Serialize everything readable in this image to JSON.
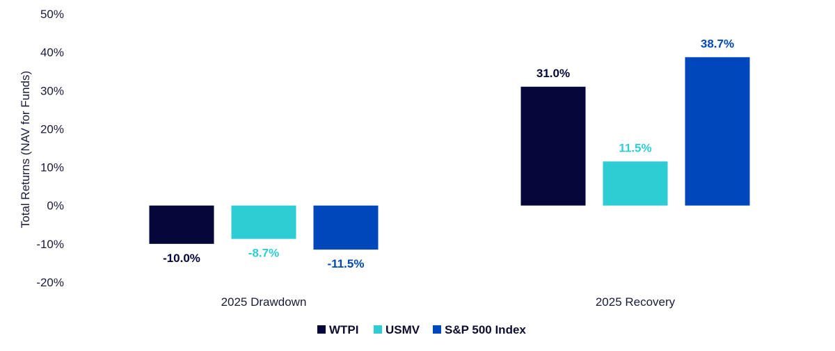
{
  "chart_data": {
    "type": "bar",
    "categories": [
      "2025 Drawdown",
      "2025 Recovery"
    ],
    "series": [
      {
        "name": "WTPI",
        "values": [
          -10.0,
          31.0
        ],
        "labels": [
          "-10.0%",
          "31.0%"
        ],
        "color": "#05063a"
      },
      {
        "name": "USMV",
        "values": [
          -8.7,
          11.5
        ],
        "labels": [
          "-8.7%",
          "11.5%"
        ],
        "color": "#2ecdd3"
      },
      {
        "name": "S&P 500 Index",
        "values": [
          -11.5,
          38.7
        ],
        "labels": [
          "-11.5%",
          "38.7%"
        ],
        "color": "#0047bb"
      }
    ],
    "title": "",
    "xlabel": "",
    "ylabel": "Total Returns (NAV for Funds)",
    "ylim": [
      -20,
      50
    ],
    "yticks": [
      50,
      40,
      30,
      20,
      10,
      0,
      -10,
      -20
    ],
    "ytick_labels": [
      "50%",
      "40%",
      "30%",
      "20%",
      "10%",
      "0%",
      "-10%",
      "-20%"
    ],
    "grid": false,
    "legend_position": "bottom-center"
  }
}
